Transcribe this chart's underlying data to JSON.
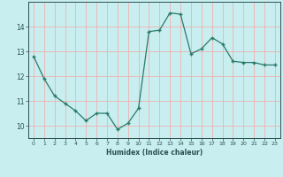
{
  "x": [
    0,
    1,
    2,
    3,
    4,
    5,
    6,
    7,
    8,
    9,
    10,
    11,
    12,
    13,
    14,
    15,
    16,
    17,
    18,
    19,
    20,
    21,
    22,
    23
  ],
  "y": [
    12.8,
    11.9,
    11.2,
    10.9,
    10.6,
    10.2,
    10.5,
    10.5,
    9.85,
    10.1,
    10.7,
    13.8,
    13.85,
    14.55,
    14.5,
    12.9,
    13.1,
    13.55,
    13.3,
    12.6,
    12.55,
    12.55,
    12.45,
    12.45
  ],
  "title": "",
  "xlabel": "Humidex (Indice chaleur)",
  "ylabel": "",
  "line_color": "#2a7a6a",
  "marker": "+",
  "bg_color": "#c8eef0",
  "grid_color": "#f0b0b0",
  "axis_color": "#2a5050",
  "xlim": [
    -0.5,
    23.5
  ],
  "ylim": [
    9.5,
    15.0
  ],
  "yticks": [
    10,
    11,
    12,
    13,
    14
  ],
  "xticks": [
    0,
    1,
    2,
    3,
    4,
    5,
    6,
    7,
    8,
    9,
    10,
    11,
    12,
    13,
    14,
    15,
    16,
    17,
    18,
    19,
    20,
    21,
    22,
    23
  ]
}
